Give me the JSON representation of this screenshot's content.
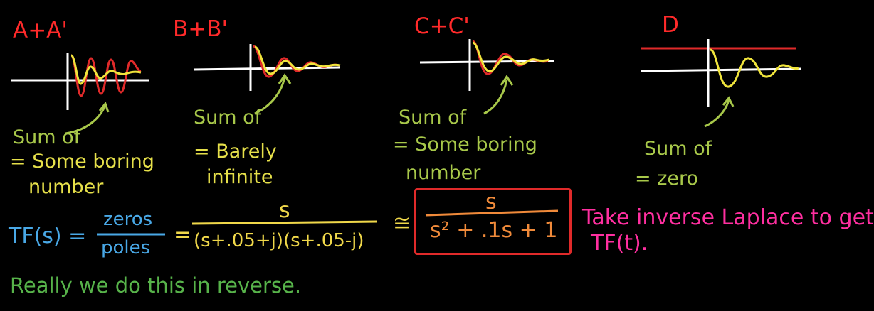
{
  "panels": [
    {
      "label": "A+A'",
      "note_line1": "Sum of",
      "note_line2": "= Some boring",
      "note_line3": "number"
    },
    {
      "label": "B+B'",
      "note_line1": "Sum of",
      "note_line2": "= Barely",
      "note_line3": "infinite"
    },
    {
      "label": "C+C'",
      "note_line1": "Sum of",
      "note_line2": "= Some boring",
      "note_line3": "number"
    },
    {
      "label": "D",
      "note_line1": "Sum of",
      "note_line2": "= zero"
    }
  ],
  "equation": {
    "lhs": "TF(s) =",
    "frac1_num": "zeros",
    "frac1_den": "poles",
    "eq2": "=",
    "frac2_num": "s",
    "frac2_den": "(s+.05+j)(s+.05-j)",
    "approx": "≅",
    "frac3_num": "s",
    "frac3_den": "s² + .1s + 1"
  },
  "side_note": {
    "line1": "Take inverse Laplace to get",
    "line2": "TF(t)."
  },
  "footer": "Really we do this in reverse.",
  "colors": {
    "red": "#ff2a2a",
    "yellow": "#f0d84a",
    "green": "#a8c84a",
    "blue": "#49a8e6",
    "orange": "#f08a3a",
    "pink": "#ff2fa0"
  }
}
